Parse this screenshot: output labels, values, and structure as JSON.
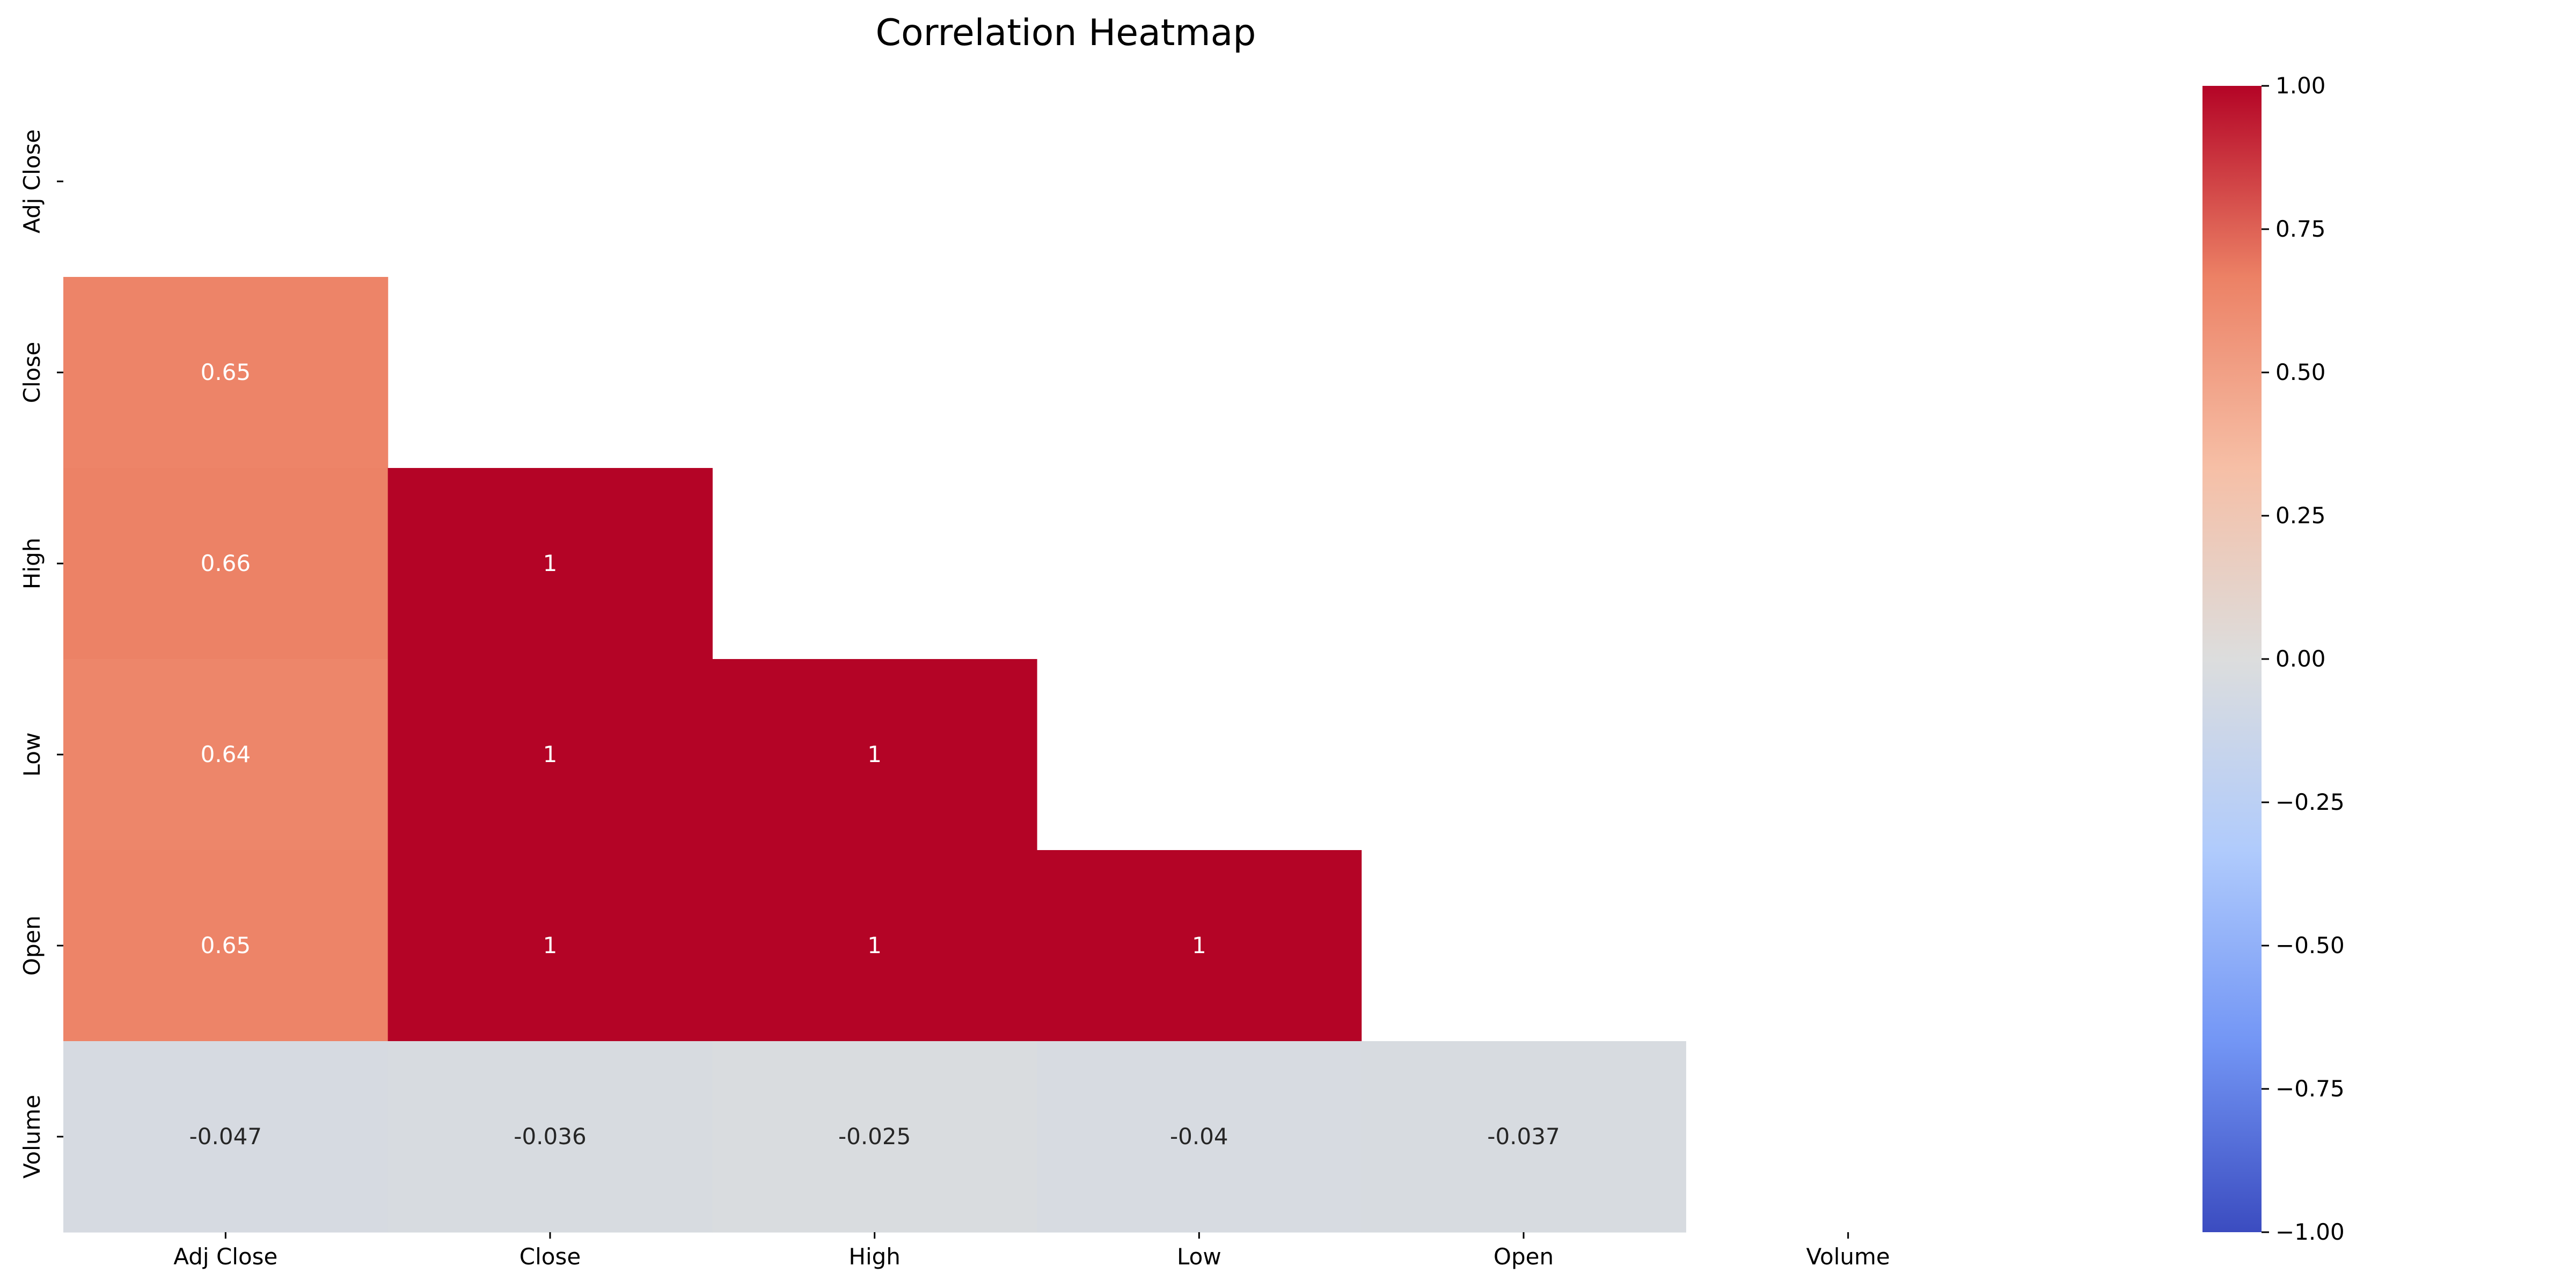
{
  "chart_data": {
    "type": "heatmap",
    "title": "Correlation Heatmap",
    "xlabel": "",
    "ylabel": "",
    "x_labels": [
      "Adj Close",
      "Close",
      "High",
      "Low",
      "Open",
      "Volume"
    ],
    "y_labels": [
      "Adj Close",
      "Close",
      "High",
      "Low",
      "Open",
      "Volume"
    ],
    "mask": "upper-triangle-including-diagonal",
    "cells": [
      {
        "row": "Close",
        "col": "Adj Close",
        "value": 0.65,
        "label": "0.65"
      },
      {
        "row": "High",
        "col": "Adj Close",
        "value": 0.66,
        "label": "0.66"
      },
      {
        "row": "High",
        "col": "Close",
        "value": 1.0,
        "label": "1"
      },
      {
        "row": "Low",
        "col": "Adj Close",
        "value": 0.64,
        "label": "0.64"
      },
      {
        "row": "Low",
        "col": "Close",
        "value": 1.0,
        "label": "1"
      },
      {
        "row": "Low",
        "col": "High",
        "value": 1.0,
        "label": "1"
      },
      {
        "row": "Open",
        "col": "Adj Close",
        "value": 0.65,
        "label": "0.65"
      },
      {
        "row": "Open",
        "col": "Close",
        "value": 1.0,
        "label": "1"
      },
      {
        "row": "Open",
        "col": "High",
        "value": 1.0,
        "label": "1"
      },
      {
        "row": "Open",
        "col": "Low",
        "value": 1.0,
        "label": "1"
      },
      {
        "row": "Volume",
        "col": "Adj Close",
        "value": -0.047,
        "label": "-0.047"
      },
      {
        "row": "Volume",
        "col": "Close",
        "value": -0.036,
        "label": "-0.036"
      },
      {
        "row": "Volume",
        "col": "High",
        "value": -0.025,
        "label": "-0.025"
      },
      {
        "row": "Volume",
        "col": "Low",
        "value": -0.04,
        "label": "-0.04"
      },
      {
        "row": "Volume",
        "col": "Open",
        "value": -0.037,
        "label": "-0.037"
      }
    ],
    "colorbar": {
      "colormap": "coolwarm",
      "vmin": -1.0,
      "vmax": 1.0,
      "ticks": [
        1.0,
        0.75,
        0.5,
        0.25,
        0.0,
        -0.25,
        -0.5,
        -0.75,
        -1.0
      ],
      "tick_labels": [
        "1.00",
        "0.75",
        "0.50",
        "0.25",
        "0.00",
        "−0.25",
        "−0.50",
        "−0.75",
        "−1.00"
      ]
    },
    "grid": false,
    "legend": "colorbar-right"
  },
  "colors": {
    "colormap_stops": [
      "#3b4cc0",
      "#7396f5",
      "#b0cbfc",
      "#dcdddd",
      "#f6bfa6",
      "#ec8165",
      "#b40426"
    ],
    "label_light": "#ffffff",
    "label_dark": "#262626"
  }
}
